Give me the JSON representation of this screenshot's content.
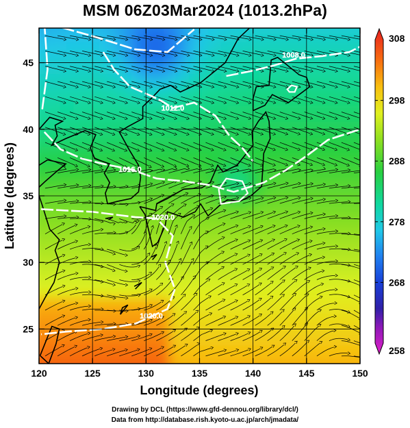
{
  "title": "MSM 06Z03Mar2024 (1013.2hPa)",
  "x_axis": {
    "label": "Longitude (degrees)",
    "ticks": [
      {
        "value": 120,
        "label": "120"
      },
      {
        "value": 125,
        "label": "125"
      },
      {
        "value": 130,
        "label": "130"
      },
      {
        "value": 135,
        "label": "135"
      },
      {
        "value": 140,
        "label": "140"
      },
      {
        "value": 145,
        "label": "145"
      },
      {
        "value": 150,
        "label": "150"
      }
    ],
    "range": [
      120,
      150
    ]
  },
  "y_axis": {
    "label": "Latitude  (degrees)",
    "ticks": [
      {
        "value": 25,
        "label": "25"
      },
      {
        "value": 30,
        "label": "30"
      },
      {
        "value": 35,
        "label": "35"
      },
      {
        "value": 40,
        "label": "40"
      },
      {
        "value": 45,
        "label": "45"
      }
    ],
    "range": [
      22.4,
      47.6
    ]
  },
  "colorbar": {
    "range": [
      258,
      308
    ],
    "ticks": [
      {
        "value": 308,
        "label": "308"
      },
      {
        "value": 298,
        "label": "298"
      },
      {
        "value": 288,
        "label": "288"
      },
      {
        "value": 278,
        "label": "278"
      },
      {
        "value": 268,
        "label": "268"
      },
      {
        "value": 258,
        "label": "258"
      }
    ],
    "stops": [
      {
        "value": 258,
        "color": "#e020c8"
      },
      {
        "value": 262,
        "color": "#9018b8"
      },
      {
        "value": 265,
        "color": "#3020a8"
      },
      {
        "value": 269,
        "color": "#1840d8"
      },
      {
        "value": 273,
        "color": "#2080f0"
      },
      {
        "value": 277,
        "color": "#20c8e8"
      },
      {
        "value": 281,
        "color": "#10d8a0"
      },
      {
        "value": 286,
        "color": "#28d040"
      },
      {
        "value": 291,
        "color": "#90e020"
      },
      {
        "value": 295,
        "color": "#e0f020"
      },
      {
        "value": 299,
        "color": "#f8c010"
      },
      {
        "value": 303,
        "color": "#f87010"
      },
      {
        "value": 308,
        "color": "#e82020"
      }
    ]
  },
  "contours": [
    {
      "label": "1008.0",
      "points": [
        [
          120.3,
          41.5
        ],
        [
          120.8,
          44.5
        ],
        [
          120.5,
          48
        ],
        [
          125,
          47
        ],
        [
          129,
          46
        ],
        [
          132,
          45.8
        ],
        [
          134.5,
          47.5
        ]
      ],
      "labels_at": []
    },
    {
      "label": "1008.0",
      "points": [
        [
          137.5,
          44
        ],
        [
          140,
          44.4
        ],
        [
          142,
          44.8
        ],
        [
          144,
          45.3
        ],
        [
          146.5,
          45.5
        ],
        [
          149,
          45.8
        ],
        [
          150,
          46.2
        ]
      ],
      "labels_at": [
        [
          143.8,
          45.6
        ]
      ]
    },
    {
      "label": "1012.0",
      "points": [
        [
          126,
          45.8
        ],
        [
          127,
          44.5
        ],
        [
          128.5,
          43.2
        ],
        [
          130.5,
          42.5
        ],
        [
          131.5,
          42.1
        ],
        [
          132.5,
          41.6
        ],
        [
          134.5,
          42.0
        ],
        [
          136.5,
          41.0
        ],
        [
          137.8,
          39.5
        ],
        [
          139,
          38.6
        ],
        [
          140,
          37.6
        ]
      ],
      "labels_at": [
        [
          132.5,
          41.6
        ]
      ]
    },
    {
      "label": "1016.0",
      "points": [
        [
          120.5,
          39.8
        ],
        [
          122,
          38.5
        ],
        [
          124,
          37.8
        ],
        [
          126,
          37.4
        ],
        [
          128.5,
          37.0
        ],
        [
          131,
          36.3
        ],
        [
          133.5,
          36.1
        ],
        [
          136,
          35.8
        ],
        [
          138.2,
          35.3
        ],
        [
          141,
          36.0
        ],
        [
          143,
          36.9
        ],
        [
          145,
          38.0
        ],
        [
          147,
          39.2
        ],
        [
          150,
          40.0
        ]
      ],
      "labels_at": [
        [
          128.5,
          37.0
        ]
      ]
    },
    {
      "label": "1020.0",
      "points": [
        [
          120.2,
          34.0
        ],
        [
          122.5,
          33.9
        ],
        [
          125.0,
          33.8
        ],
        [
          127.0,
          33.6
        ],
        [
          129.0,
          33.4
        ],
        [
          131.0,
          33.3
        ],
        [
          132.5,
          32.0
        ],
        [
          131.8,
          30.0
        ],
        [
          132.7,
          28.0
        ],
        [
          132.0,
          26.5
        ],
        [
          129.0,
          25.4
        ],
        [
          126.0,
          25.0
        ],
        [
          122.5,
          24.8
        ],
        [
          120.2,
          24.6
        ]
      ],
      "labels_at": [
        [
          131.6,
          33.4
        ],
        [
          130.5,
          26.0
        ]
      ]
    }
  ],
  "highlights": [
    {
      "label": "",
      "points": [
        [
          137,
          34.4
        ],
        [
          136.8,
          35.5
        ],
        [
          137.5,
          36.3
        ],
        [
          139,
          36.1
        ],
        [
          139.5,
          35.2
        ],
        [
          138.7,
          34.6
        ]
      ]
    },
    {
      "label": "",
      "points": [
        [
          143.2,
          43.0
        ],
        [
          143.6,
          43.3
        ],
        [
          144.1,
          43.2
        ],
        [
          143.9,
          42.8
        ],
        [
          143.4,
          42.8
        ]
      ]
    }
  ],
  "credits": {
    "line1": "Drawing by DCL (https://www.gfd-dennou.org/library/dcl/)",
    "line2": "Data from http://database.rish.kyoto-u.ac.jp/arch/jmadata/"
  }
}
